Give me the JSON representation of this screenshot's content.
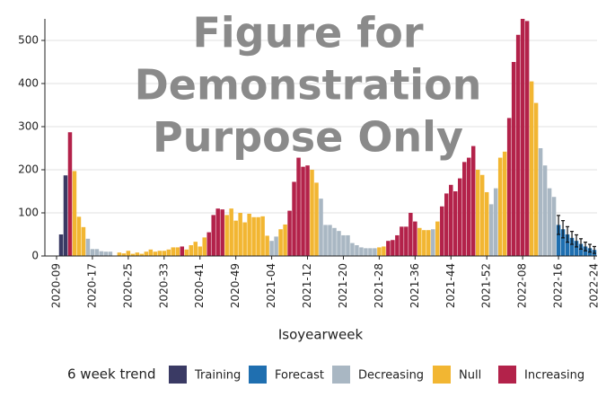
{
  "chart_data": {
    "type": "bar",
    "watermark": [
      "Figure for",
      "Demonstration",
      "Purpose Only"
    ],
    "x_label": "Isoyearweek",
    "legend_title": "6 week trend",
    "categories": [
      "2020-09",
      null,
      null,
      null,
      null,
      null,
      null,
      null,
      "2020-17",
      null,
      null,
      null,
      null,
      null,
      null,
      null,
      "2020-25",
      null,
      null,
      null,
      null,
      null,
      null,
      null,
      "2020-33",
      null,
      null,
      null,
      null,
      null,
      null,
      null,
      "2020-41",
      null,
      null,
      null,
      null,
      null,
      null,
      null,
      "2020-49",
      null,
      null,
      null,
      null,
      null,
      null,
      null,
      "2021-04",
      null,
      null,
      null,
      null,
      null,
      null,
      null,
      "2021-12",
      null,
      null,
      null,
      null,
      null,
      null,
      null,
      "2021-20",
      null,
      null,
      null,
      null,
      null,
      null,
      null,
      "2021-28",
      null,
      null,
      null,
      null,
      null,
      null,
      null,
      "2021-36",
      null,
      null,
      null,
      null,
      null,
      null,
      null,
      "2021-44",
      null,
      null,
      null,
      null,
      null,
      null,
      null,
      "2021-52",
      null,
      null,
      null,
      null,
      null,
      null,
      null,
      "2022-08",
      null,
      null,
      null,
      null,
      null,
      null,
      null,
      "2022-16",
      null,
      null,
      null,
      null,
      null,
      null,
      null,
      "2022-24"
    ],
    "series": [
      {
        "name": "Training",
        "color": "#3a3a64",
        "values": [
          null,
          50,
          187,
          null,
          null,
          null,
          null,
          null,
          null,
          null,
          null,
          null,
          null,
          null,
          null,
          null,
          null,
          null,
          null,
          null,
          null,
          null,
          null,
          null,
          null,
          null,
          null,
          null,
          null,
          null,
          null,
          null,
          null,
          null,
          null,
          null,
          null,
          null,
          null,
          null,
          null,
          null,
          null,
          null,
          null,
          null,
          null,
          null,
          null,
          null,
          null,
          null,
          null,
          null,
          null,
          null,
          null,
          null,
          null,
          null,
          null,
          null,
          null,
          null,
          null,
          null,
          null,
          null,
          null,
          null,
          null,
          null,
          null,
          null,
          null,
          null,
          null,
          null,
          null,
          null,
          null,
          null,
          null,
          null,
          null,
          null,
          null,
          null,
          null,
          null,
          null,
          null,
          null,
          null,
          null,
          null,
          null,
          null,
          null,
          null,
          null,
          null,
          null,
          null,
          null,
          null,
          null,
          null,
          null,
          null,
          null,
          null,
          null,
          null,
          null,
          null,
          null,
          null,
          null,
          null,
          null
        ]
      },
      {
        "name": "Forecast",
        "color": "#1f6fb0",
        "values": [
          null,
          null,
          null,
          null,
          null,
          null,
          null,
          null,
          null,
          null,
          null,
          null,
          null,
          null,
          null,
          null,
          null,
          null,
          null,
          null,
          null,
          null,
          null,
          null,
          null,
          null,
          null,
          null,
          null,
          null,
          null,
          null,
          null,
          null,
          null,
          null,
          null,
          null,
          null,
          null,
          null,
          null,
          null,
          null,
          null,
          null,
          null,
          null,
          null,
          null,
          null,
          null,
          null,
          null,
          null,
          null,
          null,
          null,
          null,
          null,
          null,
          null,
          null,
          null,
          null,
          null,
          null,
          null,
          null,
          null,
          null,
          null,
          null,
          null,
          null,
          null,
          null,
          null,
          null,
          null,
          null,
          null,
          null,
          null,
          null,
          null,
          null,
          null,
          null,
          null,
          null,
          null,
          null,
          null,
          null,
          null,
          null,
          null,
          null,
          null,
          null,
          null,
          null,
          null,
          null,
          null,
          null,
          null,
          null,
          null,
          null,
          null,
          72,
          62,
          50,
          42,
          35,
          28,
          22,
          18,
          14
        ],
        "errors": [
          null,
          null,
          null,
          null,
          null,
          null,
          null,
          null,
          null,
          null,
          null,
          null,
          null,
          null,
          null,
          null,
          null,
          null,
          null,
          null,
          null,
          null,
          null,
          null,
          null,
          null,
          null,
          null,
          null,
          null,
          null,
          null,
          null,
          null,
          null,
          null,
          null,
          null,
          null,
          null,
          null,
          null,
          null,
          null,
          null,
          null,
          null,
          null,
          null,
          null,
          null,
          null,
          null,
          null,
          null,
          null,
          null,
          null,
          null,
          null,
          null,
          null,
          null,
          null,
          null,
          null,
          null,
          null,
          null,
          null,
          null,
          null,
          null,
          null,
          null,
          null,
          null,
          null,
          null,
          null,
          null,
          null,
          null,
          null,
          null,
          null,
          null,
          null,
          null,
          null,
          null,
          null,
          null,
          null,
          null,
          null,
          null,
          null,
          null,
          null,
          null,
          null,
          null,
          null,
          null,
          null,
          null,
          null,
          null,
          null,
          null,
          null,
          22,
          20,
          18,
          15,
          14,
          12,
          10,
          9,
          8
        ]
      },
      {
        "name": "Decreasing",
        "color": "#a9b7c3",
        "values": [
          null,
          null,
          null,
          null,
          null,
          null,
          null,
          40,
          16,
          16,
          11,
          10,
          10,
          null,
          null,
          null,
          null,
          null,
          null,
          null,
          null,
          null,
          null,
          null,
          null,
          null,
          null,
          null,
          null,
          null,
          null,
          null,
          null,
          null,
          null,
          null,
          null,
          null,
          null,
          null,
          null,
          null,
          null,
          null,
          null,
          null,
          null,
          null,
          35,
          45,
          null,
          null,
          null,
          null,
          null,
          null,
          null,
          null,
          null,
          133,
          72,
          72,
          65,
          58,
          48,
          48,
          30,
          25,
          20,
          18,
          18,
          18,
          null,
          null,
          null,
          null,
          null,
          null,
          null,
          null,
          null,
          null,
          null,
          null,
          62,
          null,
          null,
          null,
          null,
          null,
          null,
          null,
          null,
          null,
          null,
          null,
          null,
          120,
          157,
          null,
          null,
          null,
          null,
          null,
          null,
          null,
          null,
          null,
          250,
          210,
          157,
          137,
          null,
          null,
          null,
          null,
          null,
          null,
          null,
          null,
          null
        ]
      },
      {
        "name": "Null",
        "color": "#f2b632",
        "values": [
          null,
          null,
          null,
          null,
          197,
          91,
          67,
          null,
          null,
          null,
          null,
          null,
          null,
          null,
          8,
          6,
          12,
          5,
          8,
          5,
          10,
          15,
          10,
          12,
          12,
          15,
          20,
          20,
          null,
          15,
          25,
          33,
          22,
          43,
          null,
          null,
          null,
          null,
          95,
          110,
          82,
          100,
          78,
          98,
          90,
          90,
          92,
          47,
          null,
          null,
          62,
          73,
          null,
          null,
          null,
          null,
          null,
          200,
          170,
          null,
          null,
          null,
          null,
          null,
          null,
          null,
          null,
          null,
          null,
          null,
          null,
          null,
          20,
          22,
          null,
          null,
          null,
          null,
          null,
          null,
          null,
          65,
          60,
          60,
          null,
          80,
          null,
          null,
          null,
          null,
          null,
          null,
          null,
          null,
          200,
          188,
          148,
          null,
          null,
          228,
          242,
          null,
          null,
          null,
          null,
          null,
          405,
          355,
          null,
          null,
          null,
          null,
          null,
          null,
          null,
          null,
          null,
          null,
          null,
          null,
          null
        ]
      },
      {
        "name": "Increasing",
        "color": "#b3224a",
        "values": [
          null,
          null,
          null,
          287,
          null,
          null,
          null,
          null,
          null,
          null,
          null,
          null,
          null,
          null,
          null,
          null,
          null,
          null,
          null,
          null,
          null,
          null,
          null,
          null,
          null,
          null,
          null,
          null,
          22,
          null,
          null,
          null,
          null,
          null,
          55,
          95,
          110,
          108,
          null,
          null,
          null,
          null,
          null,
          null,
          null,
          null,
          null,
          null,
          null,
          null,
          null,
          null,
          105,
          172,
          228,
          207,
          210,
          null,
          null,
          null,
          null,
          null,
          null,
          null,
          null,
          null,
          null,
          null,
          null,
          null,
          null,
          null,
          null,
          null,
          35,
          37,
          48,
          68,
          68,
          100,
          80,
          null,
          null,
          null,
          null,
          null,
          115,
          145,
          165,
          150,
          180,
          218,
          228,
          255,
          null,
          null,
          null,
          null,
          null,
          null,
          null,
          320,
          450,
          513,
          550,
          545,
          null,
          null,
          null,
          null,
          null,
          null,
          null,
          null,
          null,
          null,
          null,
          null,
          null,
          null,
          null
        ]
      }
    ],
    "ylim": [
      0,
      550
    ],
    "yticks": [
      0,
      100,
      200,
      300,
      400,
      500
    ],
    "grid": true,
    "legend": "bottom"
  }
}
